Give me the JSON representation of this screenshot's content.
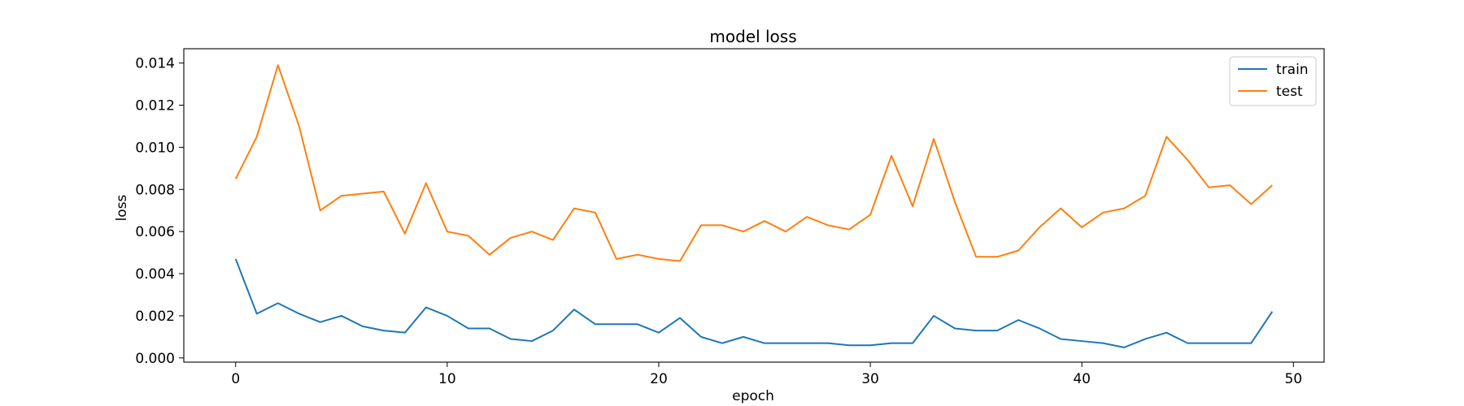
{
  "chart_data": {
    "type": "line",
    "title": "model loss",
    "xlabel": "epoch",
    "ylabel": "loss",
    "xlim": [
      -2.45,
      51.45
    ],
    "ylim": [
      -0.0002,
      0.01468
    ],
    "x_ticks": [
      0,
      10,
      20,
      30,
      40,
      50
    ],
    "y_ticks": [
      0.0,
      0.002,
      0.004,
      0.006,
      0.008,
      0.01,
      0.012,
      0.014
    ],
    "y_tick_labels": [
      "0.000",
      "0.002",
      "0.004",
      "0.006",
      "0.008",
      "0.010",
      "0.012",
      "0.014"
    ],
    "legend_position": "upper right",
    "grid": false,
    "x": [
      0,
      1,
      2,
      3,
      4,
      5,
      6,
      7,
      8,
      9,
      10,
      11,
      12,
      13,
      14,
      15,
      16,
      17,
      18,
      19,
      20,
      21,
      22,
      23,
      24,
      25,
      26,
      27,
      28,
      29,
      30,
      31,
      32,
      33,
      34,
      35,
      36,
      37,
      38,
      39,
      40,
      41,
      42,
      43,
      44,
      45,
      46,
      47,
      48,
      49
    ],
    "series": [
      {
        "name": "train",
        "color": "#1f77b4",
        "values": [
          0.0047,
          0.0021,
          0.0026,
          0.0021,
          0.0017,
          0.002,
          0.0015,
          0.0013,
          0.0012,
          0.0024,
          0.002,
          0.0014,
          0.0014,
          0.0009,
          0.0008,
          0.0013,
          0.0023,
          0.0016,
          0.0016,
          0.0016,
          0.0012,
          0.0019,
          0.001,
          0.0007,
          0.001,
          0.0007,
          0.0007,
          0.0007,
          0.0007,
          0.0006,
          0.0006,
          0.0007,
          0.0007,
          0.002,
          0.0014,
          0.0013,
          0.0013,
          0.0018,
          0.0014,
          0.0009,
          0.0008,
          0.0007,
          0.0005,
          0.0009,
          0.0012,
          0.0007,
          0.0007,
          0.0007,
          0.0007,
          0.0022
        ]
      },
      {
        "name": "test",
        "color": "#ff7f0e",
        "values": [
          0.0085,
          0.0105,
          0.0139,
          0.011,
          0.007,
          0.0077,
          0.0078,
          0.0079,
          0.0059,
          0.0083,
          0.006,
          0.0058,
          0.0049,
          0.0057,
          0.006,
          0.0056,
          0.0071,
          0.0069,
          0.0047,
          0.0049,
          0.0047,
          0.0046,
          0.0063,
          0.0063,
          0.006,
          0.0065,
          0.006,
          0.0067,
          0.0063,
          0.0061,
          0.0068,
          0.0096,
          0.0072,
          0.0104,
          0.0074,
          0.0048,
          0.0048,
          0.0051,
          0.0062,
          0.0071,
          0.0062,
          0.0069,
          0.0071,
          0.0077,
          0.0105,
          0.0094,
          0.0081,
          0.0082,
          0.0073,
          0.0082
        ]
      }
    ]
  }
}
